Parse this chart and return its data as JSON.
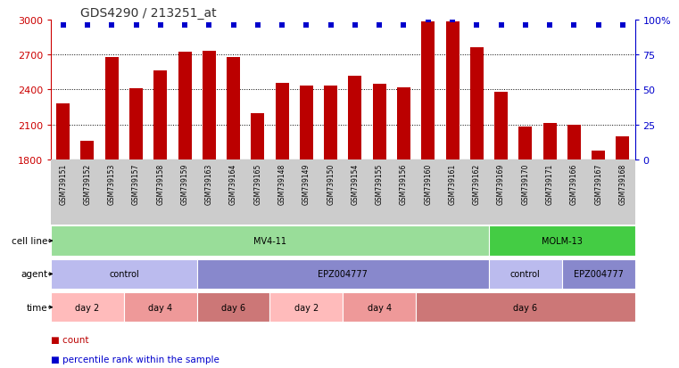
{
  "title": "GDS4290 / 213251_at",
  "samples": [
    "GSM739151",
    "GSM739152",
    "GSM739153",
    "GSM739157",
    "GSM739158",
    "GSM739159",
    "GSM739163",
    "GSM739164",
    "GSM739165",
    "GSM739148",
    "GSM739149",
    "GSM739150",
    "GSM739154",
    "GSM739155",
    "GSM739156",
    "GSM739160",
    "GSM739161",
    "GSM739162",
    "GSM739169",
    "GSM739170",
    "GSM739171",
    "GSM739166",
    "GSM739167",
    "GSM739168"
  ],
  "counts": [
    2280,
    1960,
    2680,
    2410,
    2560,
    2720,
    2730,
    2680,
    2200,
    2460,
    2430,
    2430,
    2520,
    2450,
    2420,
    2980,
    2980,
    2760,
    2380,
    2080,
    2110,
    2100,
    1880,
    2000
  ],
  "percentile_ranks": [
    96,
    96,
    96,
    96,
    96,
    96,
    96,
    96,
    96,
    96,
    96,
    96,
    96,
    96,
    96,
    100,
    100,
    96,
    96,
    96,
    96,
    96,
    96,
    96
  ],
  "ylim_left": [
    1800,
    3000
  ],
  "ylim_right": [
    0,
    100
  ],
  "bar_color": "#bb0000",
  "dot_color": "#0000cc",
  "left_axis_color": "#cc0000",
  "right_axis_color": "#0000cc",
  "tick_label_bg": "#cccccc",
  "cell_line_groups": [
    {
      "label": "MV4-11",
      "start": 0,
      "end": 17,
      "color": "#99dd99"
    },
    {
      "label": "MOLM-13",
      "start": 18,
      "end": 23,
      "color": "#44cc44"
    }
  ],
  "agent_groups": [
    {
      "label": "control",
      "start": 0,
      "end": 5,
      "color": "#bbbbee"
    },
    {
      "label": "EPZ004777",
      "start": 6,
      "end": 17,
      "color": "#8888cc"
    },
    {
      "label": "control",
      "start": 18,
      "end": 20,
      "color": "#bbbbee"
    },
    {
      "label": "EPZ004777",
      "start": 21,
      "end": 23,
      "color": "#8888cc"
    }
  ],
  "time_groups": [
    {
      "label": "day 2",
      "start": 0,
      "end": 2,
      "color": "#ffbbbb"
    },
    {
      "label": "day 4",
      "start": 3,
      "end": 5,
      "color": "#ee9999"
    },
    {
      "label": "day 6",
      "start": 6,
      "end": 8,
      "color": "#cc7777"
    },
    {
      "label": "day 2",
      "start": 9,
      "end": 11,
      "color": "#ffbbbb"
    },
    {
      "label": "day 4",
      "start": 12,
      "end": 14,
      "color": "#ee9999"
    },
    {
      "label": "day 6",
      "start": 15,
      "end": 23,
      "color": "#cc7777"
    }
  ],
  "yticks_left": [
    1800,
    2100,
    2400,
    2700,
    3000
  ],
  "yticks_right": [
    0,
    25,
    50,
    75,
    100
  ],
  "row_labels": [
    "cell line",
    "agent",
    "time"
  ],
  "legend": [
    {
      "label": "count",
      "color": "#bb0000"
    },
    {
      "label": "percentile rank within the sample",
      "color": "#0000cc"
    }
  ]
}
